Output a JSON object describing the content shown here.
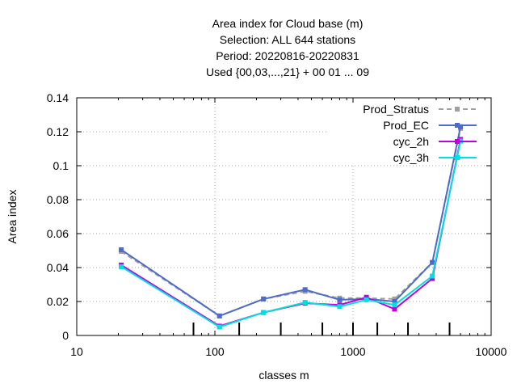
{
  "chart_data": {
    "type": "line",
    "title_lines": [
      "Area index  for Cloud base (m)",
      "Selection: ALL    644 stations",
      "Period: 20220816-20220831",
      "Used {00,03,...,21} + 00 01 ... 09"
    ],
    "xlabel": "classes m",
    "ylabel": "Area index",
    "x_scale": "log",
    "xlim": [
      10,
      10000
    ],
    "ylim": [
      0,
      0.14
    ],
    "x_ticks": [
      10,
      100,
      1000,
      10000
    ],
    "x_tick_labels": [
      "10",
      "100",
      "1000",
      "10000"
    ],
    "y_ticks": [
      0,
      0.02,
      0.04,
      0.06,
      0.08,
      0.1,
      0.12,
      0.14
    ],
    "y_tick_labels": [
      "0",
      "0.02",
      "0.04",
      "0.06",
      "0.08",
      "0.1",
      "0.12",
      "0.14"
    ],
    "grid": true,
    "legend_position": "top-right",
    "class_markers_x": [
      70,
      150,
      300,
      600,
      1000,
      1500,
      2500,
      5000
    ],
    "x": [
      21,
      108,
      225,
      450,
      800,
      1250,
      2000,
      3750,
      6000
    ],
    "series": [
      {
        "name": "Prod_Stratus",
        "color": "#a0a0a0",
        "dashed": true,
        "values": [
          0.0495,
          0.0115,
          0.0215,
          0.026,
          0.022,
          0.022,
          0.0215,
          0.043,
          0.122
        ]
      },
      {
        "name": "Prod_EC",
        "color": "#4d6bc9",
        "dashed": false,
        "values": [
          0.0505,
          0.0115,
          0.0215,
          0.027,
          0.021,
          0.0215,
          0.02,
          0.043,
          0.123
        ]
      },
      {
        "name": "cyc_2h",
        "color": "#c000e0",
        "dashed": false,
        "values": [
          0.0415,
          0.0055,
          0.0135,
          0.019,
          0.018,
          0.0225,
          0.0155,
          0.0335,
          0.1155
        ]
      },
      {
        "name": "cyc_3h",
        "color": "#00e0e0",
        "dashed": false,
        "values": [
          0.0405,
          0.005,
          0.0135,
          0.0195,
          0.017,
          0.021,
          0.018,
          0.035,
          0.1145
        ]
      }
    ]
  }
}
